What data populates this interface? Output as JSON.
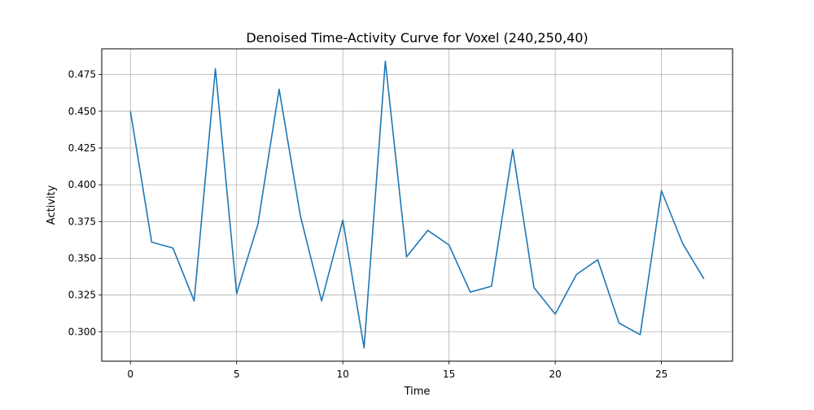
{
  "chart_data": {
    "type": "line",
    "title": "Denoised Time-Activity Curve for Voxel (240,250,40)",
    "xlabel": "Time",
    "ylabel": "Activity",
    "xlim": [
      -1.35,
      28.35
    ],
    "ylim": [
      0.28,
      0.4925
    ],
    "xticks": [
      0,
      5,
      10,
      15,
      20,
      25
    ],
    "yticks": [
      0.3,
      0.325,
      0.35,
      0.375,
      0.4,
      0.425,
      0.45,
      0.475
    ],
    "xtick_labels": [
      "0",
      "5",
      "10",
      "15",
      "20",
      "25"
    ],
    "ytick_labels": [
      "0.300",
      "0.325",
      "0.350",
      "0.375",
      "0.400",
      "0.425",
      "0.450",
      "0.475"
    ],
    "grid": true,
    "series": [
      {
        "color": "#1f77b4",
        "x": [
          0,
          1,
          2,
          3,
          4,
          5,
          6,
          7,
          8,
          9,
          10,
          11,
          12,
          13,
          14,
          15,
          16,
          17,
          18,
          19,
          20,
          21,
          22,
          23,
          24,
          25,
          26,
          27
        ],
        "y": [
          0.45,
          0.361,
          0.357,
          0.321,
          0.479,
          0.326,
          0.373,
          0.465,
          0.379,
          0.321,
          0.376,
          0.289,
          0.484,
          0.351,
          0.369,
          0.359,
          0.327,
          0.331,
          0.424,
          0.33,
          0.312,
          0.339,
          0.349,
          0.306,
          0.298,
          0.396,
          0.36,
          0.336
        ]
      }
    ]
  }
}
